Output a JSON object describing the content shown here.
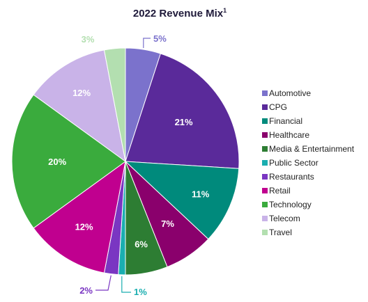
{
  "chart_data": {
    "type": "pie",
    "title": "2022 Revenue Mix",
    "title_superscript": "1",
    "legend_position": "right",
    "categories": [
      "Automotive",
      "CPG",
      "Financial",
      "Healthcare",
      "Media & Entertainment",
      "Public Sector",
      "Restaurants",
      "Retail",
      "Technology",
      "Telecom",
      "Travel"
    ],
    "values": [
      5,
      21,
      11,
      7,
      6,
      1,
      2,
      12,
      20,
      12,
      3
    ],
    "labels": [
      "5%",
      "21%",
      "11%",
      "7%",
      "6%",
      "1%",
      "2%",
      "12%",
      "20%",
      "12%",
      "3%"
    ],
    "colors": [
      "#7b72cc",
      "#5a2a9a",
      "#008a7c",
      "#8a006c",
      "#2d7d33",
      "#1aaeb0",
      "#7a36c2",
      "#c0008f",
      "#3aab3d",
      "#c9b3e8",
      "#b3dfb0"
    ]
  }
}
